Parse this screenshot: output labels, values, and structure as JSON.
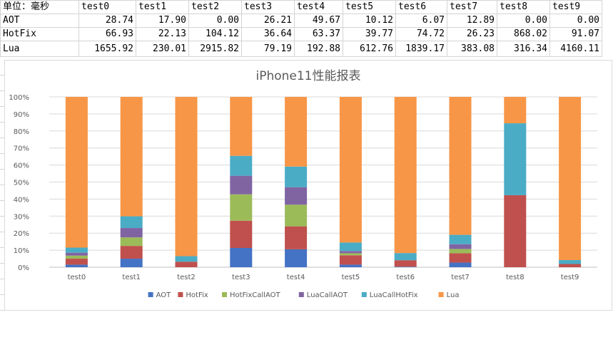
{
  "table": {
    "header": [
      "单位：毫秒",
      "test0",
      "test1",
      "test2",
      "test3",
      "test4",
      "test5",
      "test6",
      "test7",
      "test8",
      "test9"
    ],
    "rows": [
      {
        "label": "AOT",
        "values": [
          "28.74",
          "17.90",
          "0.00",
          "26.21",
          "49.67",
          "10.12",
          "6.07",
          "12.89",
          "0.00",
          "0.00"
        ]
      },
      {
        "label": "HotFix",
        "values": [
          "66.93",
          "22.13",
          "104.12",
          "36.64",
          "63.37",
          "39.77",
          "74.72",
          "26.23",
          "868.02",
          "91.07"
        ]
      },
      {
        "label": "Lua",
        "values": [
          "1655.92",
          "230.01",
          "2915.82",
          "79.19",
          "192.88",
          "612.76",
          "1839.17",
          "383.08",
          "316.34",
          "4160.11"
        ]
      }
    ]
  },
  "chart_data": {
    "type": "bar",
    "stacked": "percent",
    "title": "iPhone11性能报表",
    "categories": [
      "test0",
      "test1",
      "test2",
      "test3",
      "test4",
      "test5",
      "test6",
      "test7",
      "test8",
      "test9"
    ],
    "ylim": [
      0,
      100
    ],
    "yticks": [
      "0%",
      "10%",
      "20%",
      "30%",
      "40%",
      "50%",
      "60%",
      "70%",
      "80%",
      "90%",
      "100%"
    ],
    "grid": true,
    "legend": "bottom",
    "series": [
      {
        "name": "AOT",
        "color": "#4472C4",
        "values": [
          1.5,
          5.0,
          0.0,
          11.3,
          10.5,
          1.5,
          0.3,
          2.7,
          0.0,
          0.0
        ]
      },
      {
        "name": "HotFix",
        "color": "#C0504D",
        "values": [
          3.5,
          7.5,
          3.2,
          16.0,
          13.5,
          5.5,
          3.8,
          5.5,
          42.3,
          1.9
        ]
      },
      {
        "name": "HotFixCallAOT",
        "color": "#9BBB59",
        "values": [
          1.8,
          5.0,
          0.0,
          15.5,
          12.7,
          1.2,
          0.0,
          2.5,
          0.0,
          0.0
        ]
      },
      {
        "name": "LuaCallAOT",
        "color": "#8064A2",
        "values": [
          1.7,
          5.5,
          0.0,
          10.9,
          10.3,
          1.3,
          0.0,
          2.8,
          0.0,
          0.0
        ]
      },
      {
        "name": "LuaCallHotFix",
        "color": "#4BACC6",
        "values": [
          3.0,
          6.9,
          3.3,
          11.7,
          12.1,
          5.0,
          4.2,
          5.5,
          42.2,
          2.3
        ]
      },
      {
        "name": "Lua",
        "color": "#F79646",
        "values": [
          88.5,
          70.1,
          93.5,
          34.6,
          40.9,
          85.5,
          91.7,
          81.0,
          15.5,
          95.8
        ]
      }
    ]
  }
}
